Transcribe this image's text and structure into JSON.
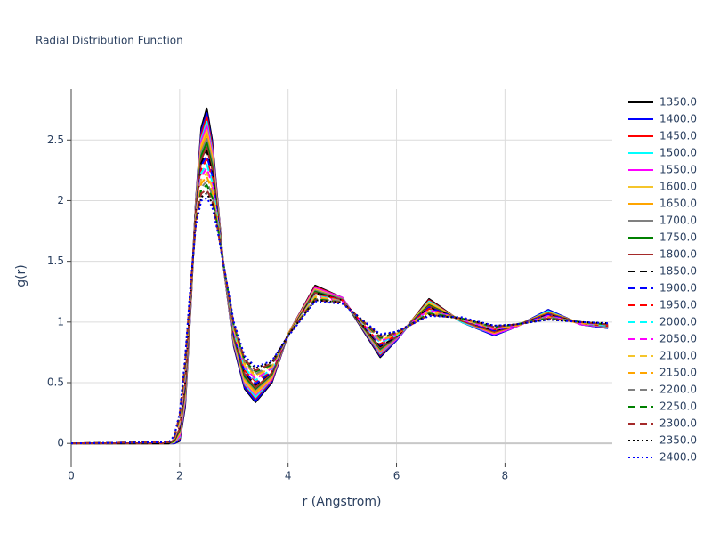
{
  "chart_data": {
    "type": "line",
    "title": "Radial Distribution Function",
    "x_label": "r (Angstrom)",
    "y_label": "g(r)",
    "x": [
      0,
      1.8,
      1.9,
      2.0,
      2.1,
      2.2,
      2.3,
      2.4,
      2.5,
      2.6,
      2.7,
      2.8,
      3.0,
      3.2,
      3.4,
      3.7,
      4.0,
      4.5,
      5.0,
      5.7,
      6.0,
      6.6,
      7.2,
      7.8,
      8.2,
      8.8,
      9.4,
      9.9
    ],
    "xlim": [
      0,
      9.98
    ],
    "xticks": [
      0,
      2,
      4,
      6,
      8
    ],
    "ylim": [
      -0.16,
      2.92
    ],
    "yticks": [
      0,
      0.5,
      1,
      1.5,
      2,
      2.5
    ],
    "grid": true,
    "legend": "right",
    "series": [
      {
        "name": "1350.0",
        "color": "#000000",
        "dash": "solid",
        "values": [
          0,
          0,
          0,
          0.02,
          0.3,
          1.1,
          2.0,
          2.6,
          2.76,
          2.5,
          2.0,
          1.5,
          0.8,
          0.45,
          0.34,
          0.5,
          0.9,
          1.3,
          1.2,
          0.71,
          0.85,
          1.19,
          1.0,
          0.89,
          0.96,
          1.1,
          0.98,
          0.95
        ]
      },
      {
        "name": "1400.0",
        "color": "#0000ff",
        "dash": "solid",
        "values": [
          0,
          0,
          0,
          0.03,
          0.32,
          1.11,
          1.99,
          2.57,
          2.72,
          2.47,
          1.99,
          1.5,
          0.81,
          0.46,
          0.35,
          0.51,
          0.9,
          1.29,
          1.2,
          0.72,
          0.85,
          1.18,
          1.0,
          0.89,
          0.96,
          1.1,
          0.98,
          0.95
        ]
      },
      {
        "name": "1450.0",
        "color": "#ff0000",
        "dash": "solid",
        "values": [
          0,
          0,
          0.01,
          0.04,
          0.34,
          1.12,
          1.98,
          2.54,
          2.69,
          2.45,
          1.98,
          1.5,
          0.82,
          0.48,
          0.37,
          0.52,
          0.9,
          1.29,
          1.2,
          0.73,
          0.86,
          1.18,
          1.0,
          0.9,
          0.96,
          1.09,
          0.98,
          0.96
        ]
      },
      {
        "name": "1500.0",
        "color": "#00ffff",
        "dash": "solid",
        "values": [
          0,
          0,
          0.01,
          0.05,
          0.36,
          1.13,
          1.97,
          2.51,
          2.65,
          2.42,
          1.96,
          1.5,
          0.83,
          0.49,
          0.38,
          0.53,
          0.9,
          1.28,
          1.2,
          0.74,
          0.86,
          1.17,
          1.0,
          0.9,
          0.96,
          1.09,
          0.98,
          0.96
        ]
      },
      {
        "name": "1550.0",
        "color": "#ff00ff",
        "dash": "solid",
        "values": [
          0,
          0,
          0.01,
          0.06,
          0.38,
          1.14,
          1.96,
          2.49,
          2.62,
          2.4,
          1.95,
          1.5,
          0.84,
          0.5,
          0.4,
          0.53,
          0.9,
          1.28,
          1.2,
          0.75,
          0.86,
          1.16,
          1.01,
          0.9,
          0.96,
          1.08,
          0.98,
          0.96
        ]
      },
      {
        "name": "1600.0",
        "color": "#f5c52b",
        "dash": "solid",
        "values": [
          0,
          0,
          0.01,
          0.08,
          0.4,
          1.15,
          1.95,
          2.46,
          2.58,
          2.37,
          1.94,
          1.5,
          0.85,
          0.51,
          0.41,
          0.54,
          0.9,
          1.27,
          1.19,
          0.76,
          0.87,
          1.16,
          1.01,
          0.91,
          0.97,
          1.08,
          0.99,
          0.96
        ]
      },
      {
        "name": "1650.0",
        "color": "#ffa500",
        "dash": "solid",
        "values": [
          0,
          0,
          0.02,
          0.09,
          0.41,
          1.16,
          1.94,
          2.43,
          2.55,
          2.34,
          1.93,
          1.5,
          0.86,
          0.53,
          0.42,
          0.55,
          0.9,
          1.26,
          1.19,
          0.76,
          0.87,
          1.15,
          1.01,
          0.91,
          0.97,
          1.08,
          0.99,
          0.96
        ]
      },
      {
        "name": "1700.0",
        "color": "#808080",
        "dash": "solid",
        "values": [
          0,
          0,
          0.02,
          0.1,
          0.43,
          1.17,
          1.93,
          2.4,
          2.51,
          2.32,
          1.92,
          1.5,
          0.87,
          0.54,
          0.44,
          0.56,
          0.89,
          1.26,
          1.19,
          0.77,
          0.87,
          1.14,
          1.01,
          0.92,
          0.97,
          1.07,
          0.99,
          0.96
        ]
      },
      {
        "name": "1750.0",
        "color": "#008000",
        "dash": "solid",
        "values": [
          0,
          0,
          0.02,
          0.11,
          0.45,
          1.18,
          1.92,
          2.37,
          2.48,
          2.29,
          1.9,
          1.5,
          0.88,
          0.55,
          0.45,
          0.57,
          0.89,
          1.25,
          1.18,
          0.78,
          0.88,
          1.14,
          1.01,
          0.92,
          0.97,
          1.07,
          0.99,
          0.97
        ]
      },
      {
        "name": "1800.0",
        "color": "#a52a2a",
        "dash": "solid",
        "values": [
          0,
          0,
          0.03,
          0.12,
          0.47,
          1.19,
          1.91,
          2.34,
          2.44,
          2.26,
          1.89,
          1.5,
          0.89,
          0.57,
          0.46,
          0.58,
          0.89,
          1.24,
          1.18,
          0.79,
          0.88,
          1.13,
          1.01,
          0.92,
          0.97,
          1.07,
          0.99,
          0.97
        ]
      },
      {
        "name": "1850.0",
        "color": "#000000",
        "dash": "dash",
        "values": [
          0,
          0,
          0.03,
          0.13,
          0.49,
          1.2,
          1.9,
          2.31,
          2.41,
          2.24,
          1.88,
          1.5,
          0.9,
          0.58,
          0.48,
          0.59,
          0.89,
          1.24,
          1.18,
          0.8,
          0.88,
          1.12,
          1.02,
          0.93,
          0.97,
          1.06,
          0.99,
          0.97
        ]
      },
      {
        "name": "1900.0",
        "color": "#0000ff",
        "dash": "dash",
        "values": [
          0,
          0.01,
          0.03,
          0.14,
          0.51,
          1.2,
          1.9,
          2.29,
          2.37,
          2.21,
          1.87,
          1.5,
          0.9,
          0.59,
          0.49,
          0.59,
          0.89,
          1.23,
          1.18,
          0.81,
          0.89,
          1.12,
          1.02,
          0.93,
          0.97,
          1.06,
          0.99,
          0.97
        ]
      },
      {
        "name": "1950.0",
        "color": "#ff0000",
        "dash": "dash",
        "values": [
          0,
          0.01,
          0.03,
          0.15,
          0.53,
          1.21,
          1.89,
          2.26,
          2.34,
          2.19,
          1.86,
          1.5,
          0.91,
          0.6,
          0.51,
          0.6,
          0.89,
          1.23,
          1.18,
          0.82,
          0.89,
          1.11,
          1.02,
          0.94,
          0.97,
          1.05,
          0.99,
          0.97
        ]
      },
      {
        "name": "2000.0",
        "color": "#00ffff",
        "dash": "dash",
        "values": [
          0,
          0.01,
          0.04,
          0.16,
          0.55,
          1.22,
          1.88,
          2.23,
          2.3,
          2.16,
          1.85,
          1.5,
          0.92,
          0.62,
          0.52,
          0.61,
          0.89,
          1.22,
          1.17,
          0.83,
          0.89,
          1.1,
          1.02,
          0.94,
          0.97,
          1.05,
          0.99,
          0.97
        ]
      },
      {
        "name": "2050.0",
        "color": "#ff00ff",
        "dash": "dash",
        "values": [
          0,
          0.01,
          0.04,
          0.17,
          0.57,
          1.23,
          1.87,
          2.2,
          2.27,
          2.13,
          1.83,
          1.5,
          0.93,
          0.63,
          0.53,
          0.62,
          0.89,
          1.21,
          1.17,
          0.84,
          0.9,
          1.1,
          1.02,
          0.94,
          0.97,
          1.05,
          0.99,
          0.98
        ]
      },
      {
        "name": "2100.0",
        "color": "#f5c52b",
        "dash": "dash",
        "values": [
          0,
          0.01,
          0.04,
          0.18,
          0.59,
          1.24,
          1.86,
          2.17,
          2.23,
          2.11,
          1.82,
          1.5,
          0.94,
          0.64,
          0.55,
          0.63,
          0.89,
          1.21,
          1.17,
          0.85,
          0.9,
          1.09,
          1.02,
          0.95,
          0.97,
          1.04,
          0.99,
          0.98
        ]
      },
      {
        "name": "2150.0",
        "color": "#ffa500",
        "dash": "dash",
        "values": [
          0,
          0.01,
          0.05,
          0.2,
          0.6,
          1.25,
          1.85,
          2.14,
          2.2,
          2.08,
          1.81,
          1.5,
          0.95,
          0.66,
          0.56,
          0.64,
          0.89,
          1.2,
          1.17,
          0.85,
          0.9,
          1.08,
          1.03,
          0.95,
          0.97,
          1.04,
          0.99,
          0.98
        ]
      },
      {
        "name": "2200.0",
        "color": "#808080",
        "dash": "dash",
        "values": [
          0,
          0.01,
          0.05,
          0.21,
          0.62,
          1.26,
          1.84,
          2.11,
          2.16,
          2.05,
          1.8,
          1.5,
          0.96,
          0.67,
          0.57,
          0.65,
          0.89,
          1.19,
          1.17,
          0.86,
          0.91,
          1.08,
          1.03,
          0.95,
          0.98,
          1.04,
          1.0,
          0.98
        ]
      },
      {
        "name": "2250.0",
        "color": "#008000",
        "dash": "dash",
        "values": [
          0,
          0.01,
          0.05,
          0.22,
          0.64,
          1.27,
          1.83,
          2.09,
          2.13,
          2.03,
          1.79,
          1.5,
          0.97,
          0.68,
          0.59,
          0.65,
          0.89,
          1.19,
          1.16,
          0.87,
          0.91,
          1.07,
          1.03,
          0.96,
          0.98,
          1.03,
          1.0,
          0.98
        ]
      },
      {
        "name": "2300.0",
        "color": "#a52a2a",
        "dash": "dash",
        "values": [
          0,
          0.01,
          0.05,
          0.23,
          0.66,
          1.28,
          1.82,
          2.06,
          2.09,
          2.0,
          1.77,
          1.5,
          0.98,
          0.69,
          0.6,
          0.66,
          0.89,
          1.18,
          1.16,
          0.88,
          0.91,
          1.06,
          1.03,
          0.96,
          0.98,
          1.03,
          1.0,
          0.98
        ]
      },
      {
        "name": "2350.0",
        "color": "#000000",
        "dash": "dot",
        "values": [
          0,
          0.01,
          0.06,
          0.24,
          0.68,
          1.29,
          1.81,
          2.03,
          2.06,
          1.98,
          1.76,
          1.5,
          0.99,
          0.71,
          0.62,
          0.67,
          0.89,
          1.18,
          1.16,
          0.89,
          0.92,
          1.06,
          1.03,
          0.97,
          0.98,
          1.02,
          1.0,
          0.99
        ]
      },
      {
        "name": "2400.0",
        "color": "#0000ff",
        "dash": "dot",
        "values": [
          0,
          0.01,
          0.06,
          0.25,
          0.7,
          1.3,
          1.8,
          2.0,
          2.02,
          1.95,
          1.75,
          1.5,
          1.0,
          0.72,
          0.63,
          0.68,
          0.88,
          1.17,
          1.15,
          0.9,
          0.92,
          1.05,
          1.04,
          0.97,
          0.98,
          1.02,
          1.0,
          0.99
        ]
      }
    ]
  }
}
